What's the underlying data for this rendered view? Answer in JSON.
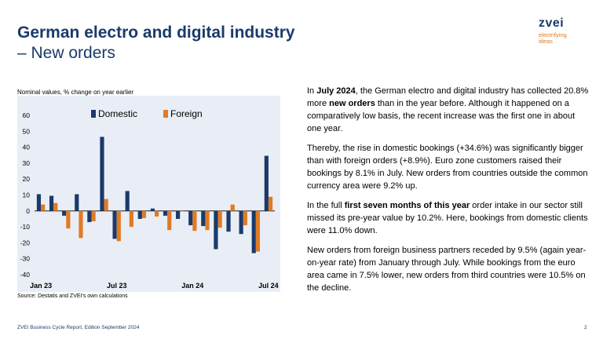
{
  "header": {
    "title": "German electro and digital industry",
    "subtitle": "– New orders"
  },
  "logo": {
    "word": "zvei",
    "tagline_1": "electrifying",
    "tagline_2": "ideas"
  },
  "chart_note": "Nominal values, % change on year earlier",
  "source": "Source: Destatis and ZVEI's own calculations",
  "footer": {
    "left": "ZVEI Business Cycle Report, Edition September 2024",
    "page": "2"
  },
  "text": {
    "p1": {
      "a": "In ",
      "b1": "July 2024",
      "c": ", the German electro and digital industry has collected 20.8% more ",
      "b2": "new orders",
      "d": " than in the year before. Although it happened on a comparatively low basis, the recent increase was the first one in about one year."
    },
    "p2": "Thereby, the rise in domestic bookings (+34.6%) was significantly bigger than with foreign orders (+8.9%). Euro zone customers raised their bookings by 8.1% in July. New orders from countries outside the common currency area were 9.2% up.",
    "p3": {
      "a": "In the full ",
      "b": "first seven months of this year",
      "c": " order intake in our sector still missed its pre-year value by 10.2%. Here, bookings from domestic clients were 11.0% down."
    },
    "p4": "New orders from foreign business partners receded by 9.5% (again year-on-year rate) from January through July. While bookings from the euro area came in 7.5% lower, new orders from third countries were 10.5% on the decline."
  },
  "chart_data": {
    "type": "bar",
    "categories": [
      "Jan 23",
      "Feb 23",
      "Mar 23",
      "Apr 23",
      "May 23",
      "Jun 23",
      "Jul 23",
      "Aug 23",
      "Sep 23",
      "Oct 23",
      "Nov 23",
      "Dec 23",
      "Jan 24",
      "Feb 24",
      "Mar 24",
      "Apr 24",
      "May 24",
      "Jun 24",
      "Jul 24"
    ],
    "tick_labels": [
      {
        "index": 0,
        "label": "Jan 23"
      },
      {
        "index": 6,
        "label": "Jul 23"
      },
      {
        "index": 12,
        "label": "Jan 24"
      },
      {
        "index": 18,
        "label": "Jul 24"
      }
    ],
    "series": [
      {
        "name": "Domestic",
        "color": "#1b3a6b",
        "values": [
          10.5,
          9.5,
          -3,
          10.5,
          -7,
          46.5,
          -17.5,
          12.5,
          -5,
          1.5,
          -3,
          -5,
          -9,
          -9.5,
          -24,
          -13,
          -14.5,
          -26.5,
          34.6
        ]
      },
      {
        "name": "Foreign",
        "color": "#e07b24",
        "values": [
          4,
          5,
          -11,
          -17,
          -6.5,
          7.5,
          -19,
          -10,
          -4.5,
          -3.5,
          -12,
          0,
          -12.5,
          -12,
          -10.5,
          4,
          -9,
          -25.5,
          8.9
        ]
      }
    ],
    "yticks": [
      60,
      50,
      40,
      30,
      20,
      10,
      0,
      -10,
      -20,
      -30,
      -40
    ],
    "ylim": [
      -40,
      60
    ],
    "legend": "top",
    "grid": false
  }
}
